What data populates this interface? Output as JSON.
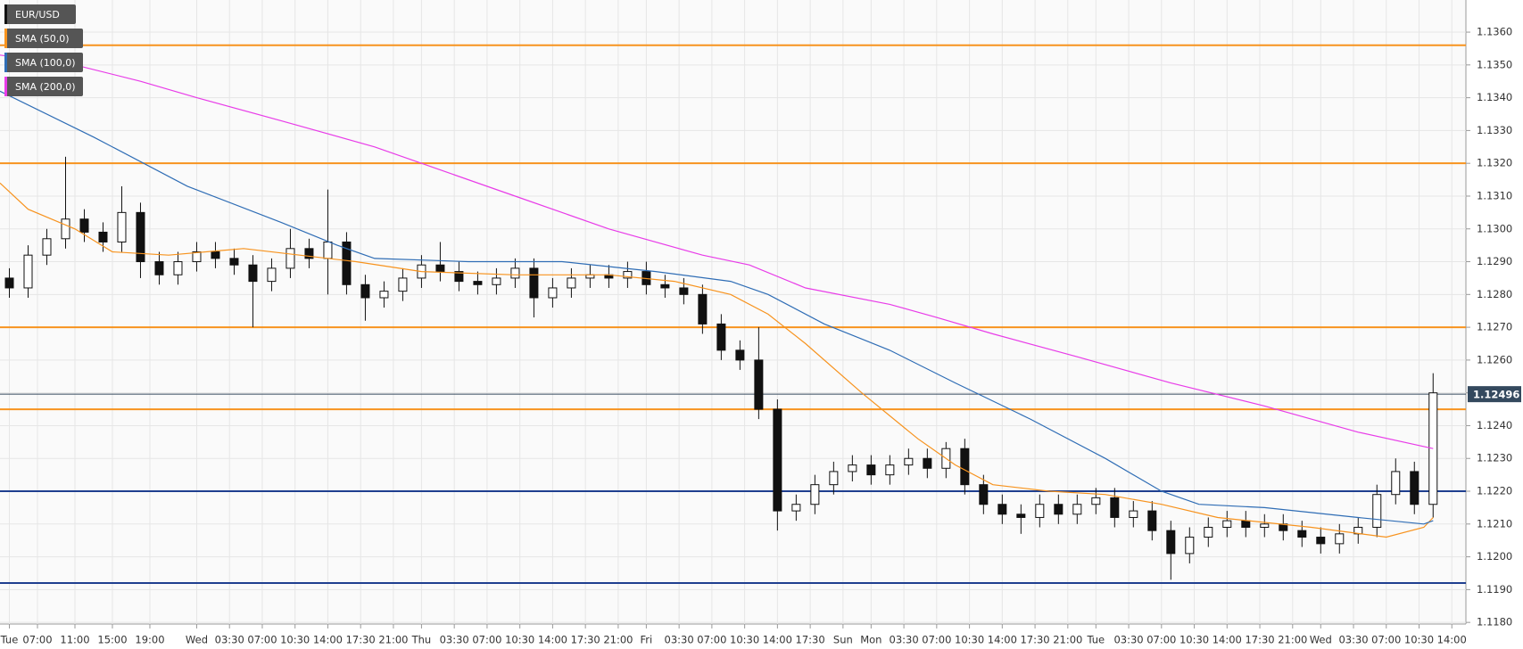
{
  "chart_data": {
    "type": "candlestick",
    "xlim": [
      0,
      156.5
    ],
    "ylim": [
      1.11795,
      1.13698
    ],
    "grid": true,
    "xticks": [
      {
        "value": 1,
        "label": "Tue"
      },
      {
        "value": 4,
        "label": "07:00"
      },
      {
        "value": 8,
        "label": "11:00"
      },
      {
        "value": 12,
        "label": "15:00"
      },
      {
        "value": 16,
        "label": "19:00"
      },
      {
        "value": 21,
        "label": "Wed"
      },
      {
        "value": 24.5,
        "label": "03:30"
      },
      {
        "value": 28,
        "label": "07:00"
      },
      {
        "value": 31.5,
        "label": "10:30"
      },
      {
        "value": 35,
        "label": "14:00"
      },
      {
        "value": 38.5,
        "label": "17:30"
      },
      {
        "value": 42,
        "label": "21:00"
      },
      {
        "value": 45,
        "label": "Thu"
      },
      {
        "value": 48.5,
        "label": "03:30"
      },
      {
        "value": 52,
        "label": "07:00"
      },
      {
        "value": 55.5,
        "label": "10:30"
      },
      {
        "value": 59,
        "label": "14:00"
      },
      {
        "value": 62.5,
        "label": "17:30"
      },
      {
        "value": 66,
        "label": "21:00"
      },
      {
        "value": 69,
        "label": "Fri"
      },
      {
        "value": 72.5,
        "label": "03:30"
      },
      {
        "value": 76,
        "label": "07:00"
      },
      {
        "value": 79.5,
        "label": "10:30"
      },
      {
        "value": 83,
        "label": "14:00"
      },
      {
        "value": 86.5,
        "label": "17:30"
      },
      {
        "value": 90,
        "label": "Sun"
      },
      {
        "value": 93,
        "label": "Mon"
      },
      {
        "value": 96.5,
        "label": "03:30"
      },
      {
        "value": 100,
        "label": "07:00"
      },
      {
        "value": 103.5,
        "label": "10:30"
      },
      {
        "value": 107,
        "label": "14:00"
      },
      {
        "value": 110.5,
        "label": "17:30"
      },
      {
        "value": 114,
        "label": "21:00"
      },
      {
        "value": 117,
        "label": "Tue"
      },
      {
        "value": 120.5,
        "label": "03:30"
      },
      {
        "value": 124,
        "label": "07:00"
      },
      {
        "value": 127.5,
        "label": "10:30"
      },
      {
        "value": 131,
        "label": "14:00"
      },
      {
        "value": 134.5,
        "label": "17:30"
      },
      {
        "value": 138,
        "label": "21:00"
      },
      {
        "value": 141,
        "label": "Wed"
      },
      {
        "value": 144.5,
        "label": "03:30"
      },
      {
        "value": 148,
        "label": "07:00"
      },
      {
        "value": 151.5,
        "label": "10:30"
      },
      {
        "value": 155,
        "label": "14:00"
      }
    ],
    "yticks": [
      {
        "value": 1.118,
        "label": "1.1180"
      },
      {
        "value": 1.119,
        "label": "1.1190"
      },
      {
        "value": 1.12,
        "label": "1.1200"
      },
      {
        "value": 1.121,
        "label": "1.1210"
      },
      {
        "value": 1.122,
        "label": "1.1220"
      },
      {
        "value": 1.123,
        "label": "1.1230"
      },
      {
        "value": 1.124,
        "label": "1.1240"
      },
      {
        "value": 1.125,
        "label": "1.1250"
      },
      {
        "value": 1.126,
        "label": "1.1260"
      },
      {
        "value": 1.127,
        "label": "1.1270"
      },
      {
        "value": 1.128,
        "label": "1.1280"
      },
      {
        "value": 1.129,
        "label": "1.1290"
      },
      {
        "value": 1.13,
        "label": "1.1300"
      },
      {
        "value": 1.131,
        "label": "1.1310"
      },
      {
        "value": 1.132,
        "label": "1.1320"
      },
      {
        "value": 1.133,
        "label": "1.1330"
      },
      {
        "value": 1.134,
        "label": "1.1340"
      },
      {
        "value": 1.135,
        "label": "1.1350"
      },
      {
        "value": 1.136,
        "label": "1.1360"
      }
    ],
    "symbol": {
      "name": "EUR/USD",
      "color": "#111111"
    },
    "x": [
      1,
      3,
      5,
      7,
      9,
      11,
      13,
      15,
      17,
      19,
      21,
      23,
      25,
      27,
      29,
      31,
      33,
      35,
      37,
      39,
      41,
      43,
      45,
      47,
      49,
      51,
      53,
      55,
      57,
      59,
      61,
      63,
      65,
      67,
      69,
      71,
      73,
      75,
      77,
      79,
      81,
      83,
      85,
      87,
      89,
      91,
      93,
      95,
      97,
      99,
      101,
      103,
      105,
      107,
      109,
      111,
      113,
      115,
      117,
      119,
      121,
      123,
      125,
      127,
      129,
      131,
      133,
      135,
      137,
      139,
      141,
      143,
      145,
      147,
      149,
      151,
      153
    ],
    "open": [
      1.1285,
      1.1282,
      1.1292,
      1.1297,
      1.1303,
      1.1299,
      1.1296,
      1.1305,
      1.129,
      1.1286,
      1.129,
      1.1293,
      1.1291,
      1.1289,
      1.1284,
      1.1288,
      1.1294,
      1.1291,
      1.1296,
      1.1283,
      1.1279,
      1.1281,
      1.1285,
      1.1289,
      1.1287,
      1.1284,
      1.1283,
      1.1285,
      1.1288,
      1.1279,
      1.1282,
      1.1285,
      1.1286,
      1.1285,
      1.1287,
      1.1283,
      1.1282,
      1.128,
      1.1271,
      1.1263,
      1.126,
      1.1245,
      1.1214,
      1.1216,
      1.1222,
      1.1226,
      1.1228,
      1.1225,
      1.1228,
      1.123,
      1.1227,
      1.1233,
      1.1222,
      1.1216,
      1.1213,
      1.1212,
      1.1216,
      1.1213,
      1.1216,
      1.1218,
      1.1212,
      1.1214,
      1.1208,
      1.1201,
      1.1206,
      1.1209,
      1.1211,
      1.1209,
      1.121,
      1.1208,
      1.1206,
      1.1204,
      1.1207,
      1.1209,
      1.1219,
      1.1226,
      1.1216
    ],
    "high": [
      1.1288,
      1.1295,
      1.13,
      1.1322,
      1.1306,
      1.1302,
      1.1313,
      1.1308,
      1.1293,
      1.1293,
      1.1296,
      1.1296,
      1.1294,
      1.1292,
      1.1291,
      1.13,
      1.1297,
      1.1312,
      1.1299,
      1.1286,
      1.1284,
      1.1288,
      1.1292,
      1.1296,
      1.129,
      1.1287,
      1.1288,
      1.1291,
      1.1291,
      1.1285,
      1.1288,
      1.1289,
      1.1289,
      1.129,
      1.129,
      1.1286,
      1.1285,
      1.1283,
      1.1274,
      1.1266,
      1.127,
      1.1248,
      1.1219,
      1.1225,
      1.1229,
      1.1231,
      1.1231,
      1.1231,
      1.1233,
      1.1233,
      1.1235,
      1.1236,
      1.1225,
      1.1219,
      1.1216,
      1.1219,
      1.1219,
      1.1219,
      1.1221,
      1.1221,
      1.1217,
      1.1217,
      1.1211,
      1.1209,
      1.1212,
      1.1214,
      1.1214,
      1.1213,
      1.1213,
      1.1211,
      1.1209,
      1.121,
      1.1212,
      1.1222,
      1.123,
      1.1229,
      1.1256
    ],
    "low": [
      1.1279,
      1.1279,
      1.1289,
      1.1294,
      1.1296,
      1.1293,
      1.1293,
      1.1285,
      1.1283,
      1.1283,
      1.1287,
      1.1288,
      1.1286,
      1.127,
      1.1281,
      1.1285,
      1.1288,
      1.128,
      1.128,
      1.1272,
      1.1276,
      1.1278,
      1.1282,
      1.1284,
      1.1281,
      1.128,
      1.128,
      1.1282,
      1.1273,
      1.1276,
      1.1279,
      1.1282,
      1.1282,
      1.1282,
      1.128,
      1.1279,
      1.1277,
      1.1268,
      1.126,
      1.1257,
      1.1242,
      1.1208,
      1.1211,
      1.1213,
      1.1219,
      1.1223,
      1.1222,
      1.1222,
      1.1225,
      1.1224,
      1.1224,
      1.1219,
      1.1213,
      1.121,
      1.1207,
      1.1209,
      1.121,
      1.121,
      1.1213,
      1.1209,
      1.1209,
      1.1205,
      1.1193,
      1.1198,
      1.1203,
      1.1206,
      1.1206,
      1.1206,
      1.1205,
      1.1203,
      1.1201,
      1.1201,
      1.1204,
      1.1206,
      1.1216,
      1.1213,
      1.1212
    ],
    "close": [
      1.1282,
      1.1292,
      1.1297,
      1.1303,
      1.1299,
      1.1296,
      1.1305,
      1.129,
      1.1286,
      1.129,
      1.1293,
      1.1291,
      1.1289,
      1.1284,
      1.1288,
      1.1294,
      1.1291,
      1.1296,
      1.1283,
      1.1279,
      1.1281,
      1.1285,
      1.1289,
      1.1287,
      1.1284,
      1.1283,
      1.1285,
      1.1288,
      1.1279,
      1.1282,
      1.1285,
      1.1286,
      1.1285,
      1.1287,
      1.1283,
      1.1282,
      1.128,
      1.1271,
      1.1263,
      1.126,
      1.1245,
      1.1214,
      1.1216,
      1.1222,
      1.1226,
      1.1228,
      1.1225,
      1.1228,
      1.123,
      1.1227,
      1.1233,
      1.1222,
      1.1216,
      1.1213,
      1.1212,
      1.1216,
      1.1213,
      1.1216,
      1.1218,
      1.1212,
      1.1214,
      1.1208,
      1.1201,
      1.1206,
      1.1209,
      1.1211,
      1.1209,
      1.121,
      1.1208,
      1.1206,
      1.1204,
      1.1207,
      1.1209,
      1.1219,
      1.1226,
      1.1216,
      1.125
    ],
    "series": [
      {
        "name": "SMA (50,0)",
        "color": "#f7931e",
        "x": [
          0,
          3,
          8,
          12,
          18,
          26,
          32,
          38,
          45,
          55,
          65,
          72,
          78,
          82,
          86,
          92,
          98,
          102,
          106,
          112,
          118,
          124,
          130,
          140,
          148,
          152,
          153
        ],
        "values": [
          1.1314,
          1.1306,
          1.13,
          1.1293,
          1.1292,
          1.1294,
          1.1292,
          1.129,
          1.1287,
          1.1286,
          1.1286,
          1.1284,
          1.128,
          1.1274,
          1.1265,
          1.125,
          1.1236,
          1.1228,
          1.1222,
          1.122,
          1.1219,
          1.1216,
          1.1212,
          1.1209,
          1.1206,
          1.1209,
          1.1212
        ]
      },
      {
        "name": "SMA (100,0)",
        "color": "#2f6db5",
        "x": [
          0,
          10,
          20,
          30,
          36,
          40,
          50,
          60,
          70,
          78,
          82,
          88,
          95,
          102,
          110,
          118,
          124,
          128,
          135,
          145,
          152,
          153
        ],
        "values": [
          1.1342,
          1.1328,
          1.1313,
          1.1302,
          1.1295,
          1.1291,
          1.129,
          1.129,
          1.1287,
          1.1284,
          1.128,
          1.1271,
          1.1263,
          1.1253,
          1.1242,
          1.123,
          1.122,
          1.1216,
          1.1215,
          1.1212,
          1.121,
          1.1211
        ]
      },
      {
        "name": "SMA (200,0)",
        "color": "#e83ce8",
        "x": [
          0,
          8,
          15,
          21,
          30,
          40,
          45,
          55,
          65,
          75,
          80,
          86,
          95,
          100,
          106,
          115,
          125,
          135,
          145,
          153
        ],
        "values": [
          1.1353,
          1.135,
          1.1345,
          1.134,
          1.1333,
          1.1325,
          1.132,
          1.131,
          1.13,
          1.1292,
          1.1289,
          1.1282,
          1.1277,
          1.1273,
          1.1268,
          1.1261,
          1.1253,
          1.1246,
          1.1238,
          1.1233
        ]
      }
    ],
    "levels": [
      {
        "value": 1.1356,
        "color": "#f7931e"
      },
      {
        "value": 1.132,
        "color": "#f7931e"
      },
      {
        "value": 1.127,
        "color": "#f7931e"
      },
      {
        "value": 1.1245,
        "color": "#f7931e"
      },
      {
        "value": 1.122,
        "color": "#1f3f8f"
      },
      {
        "value": 1.1192,
        "color": "#1f3f8f"
      }
    ],
    "last_price": 1.12496,
    "last_price_color": "#34495e"
  }
}
